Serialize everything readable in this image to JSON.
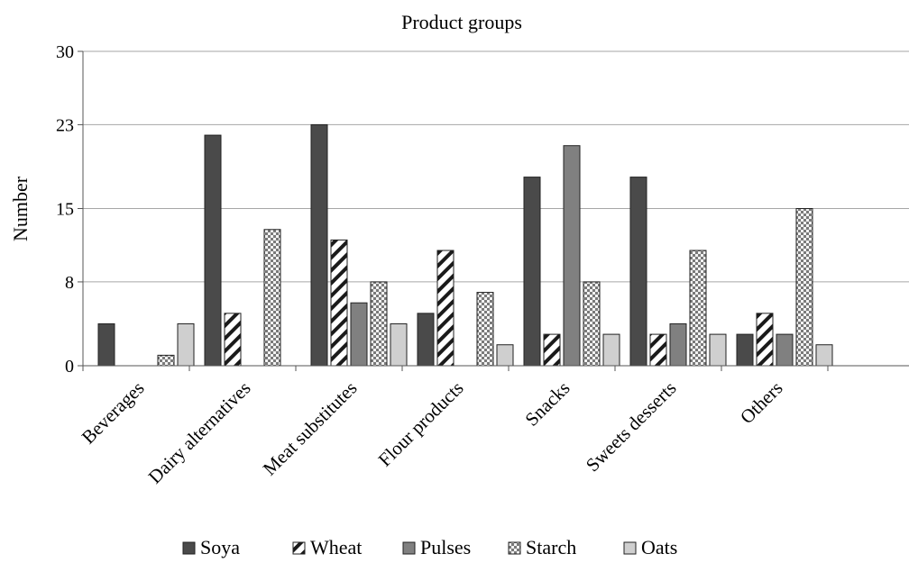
{
  "chart_data": {
    "type": "bar",
    "title": "Product groups",
    "xlabel": "",
    "ylabel": "Number",
    "ylim": [
      0,
      30
    ],
    "yticks": [
      0,
      8,
      15,
      23,
      30
    ],
    "grid": true,
    "legend_position": "bottom",
    "categories": [
      "Beverages",
      "Dairy alternatives",
      "Meat substitutes",
      "Flour products",
      "Snacks",
      "Sweets desserts",
      "Others"
    ],
    "series": [
      {
        "name": "Soya",
        "pattern": "solid-dark",
        "color": "#4a4a4a",
        "values": [
          4,
          22,
          23,
          5,
          18,
          18,
          3
        ]
      },
      {
        "name": "Wheat",
        "pattern": "diagonal",
        "color": "#ffffff",
        "values": [
          0,
          5,
          12,
          11,
          3,
          3,
          5
        ]
      },
      {
        "name": "Pulses",
        "pattern": "solid-mid",
        "color": "#808080",
        "values": [
          0,
          0,
          6,
          0,
          21,
          4,
          3
        ]
      },
      {
        "name": "Starch",
        "pattern": "checker",
        "color": "#c8c8c8",
        "values": [
          1,
          13,
          8,
          7,
          8,
          11,
          15
        ]
      },
      {
        "name": "Oats",
        "pattern": "solid-light",
        "color": "#cfcfcf",
        "values": [
          4,
          0,
          4,
          2,
          3,
          3,
          2
        ]
      }
    ]
  }
}
